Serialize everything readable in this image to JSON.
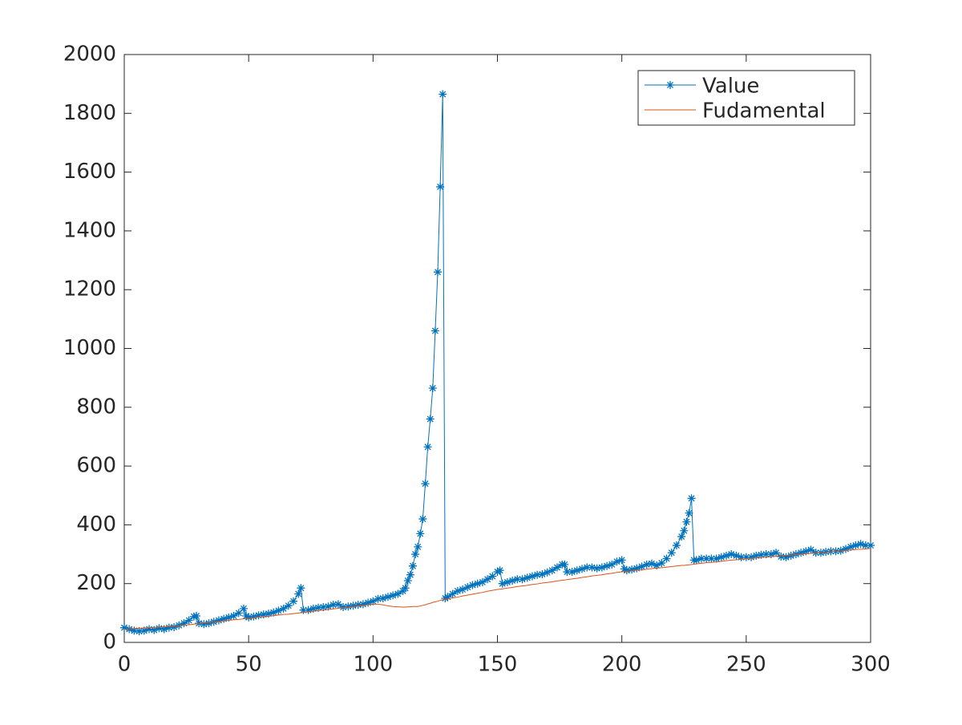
{
  "chart_data": {
    "type": "line",
    "x": [
      0,
      2,
      4,
      6,
      8,
      10,
      12,
      14,
      16,
      18,
      20,
      22,
      24,
      26,
      28,
      29,
      30,
      32,
      34,
      36,
      38,
      40,
      42,
      44,
      46,
      48,
      49,
      50,
      52,
      54,
      56,
      58,
      60,
      62,
      64,
      66,
      68,
      70,
      71,
      72,
      74,
      76,
      78,
      80,
      82,
      84,
      86,
      88,
      90,
      92,
      94,
      96,
      98,
      100,
      102,
      104,
      106,
      108,
      110,
      112,
      113,
      114,
      115,
      116,
      117,
      118,
      119,
      120,
      121,
      122,
      123,
      124,
      125,
      126,
      127,
      128,
      129,
      130,
      132,
      134,
      136,
      138,
      140,
      142,
      144,
      146,
      148,
      150,
      151,
      152,
      154,
      156,
      158,
      160,
      162,
      164,
      166,
      168,
      170,
      172,
      174,
      176,
      177,
      178,
      180,
      182,
      184,
      186,
      188,
      190,
      192,
      194,
      196,
      198,
      200,
      201,
      202,
      204,
      206,
      208,
      210,
      212,
      214,
      216,
      218,
      220,
      222,
      224,
      225,
      226,
      227,
      228,
      229,
      230,
      232,
      234,
      236,
      238,
      240,
      242,
      244,
      246,
      248,
      250,
      252,
      254,
      256,
      258,
      260,
      262,
      264,
      266,
      268,
      270,
      272,
      274,
      276,
      278,
      280,
      282,
      284,
      286,
      288,
      290,
      292,
      294,
      296,
      298,
      300
    ],
    "series": [
      {
        "name": "Value",
        "color": "#0072BD",
        "marker": "asterisk",
        "values": [
          50,
          45,
          40,
          38,
          40,
          45,
          42,
          48,
          45,
          50,
          52,
          58,
          65,
          75,
          88,
          90,
          65,
          62,
          65,
          70,
          75,
          80,
          85,
          90,
          100,
          115,
          90,
          85,
          88,
          92,
          95,
          98,
          102,
          108,
          115,
          125,
          140,
          165,
          185,
          110,
          110,
          115,
          118,
          120,
          122,
          128,
          130,
          120,
          122,
          125,
          128,
          130,
          135,
          140,
          148,
          150,
          155,
          160,
          165,
          175,
          185,
          210,
          230,
          260,
          300,
          325,
          370,
          420,
          540,
          665,
          760,
          865,
          1060,
          1260,
          1550,
          1865,
          150,
          155,
          165,
          175,
          180,
          188,
          195,
          200,
          205,
          215,
          225,
          240,
          245,
          200,
          205,
          210,
          215,
          215,
          220,
          225,
          230,
          232,
          238,
          245,
          255,
          265,
          265,
          240,
          240,
          245,
          250,
          255,
          255,
          252,
          255,
          260,
          265,
          275,
          280,
          250,
          245,
          248,
          252,
          258,
          265,
          268,
          262,
          270,
          285,
          305,
          330,
          360,
          380,
          410,
          440,
          490,
          280,
          280,
          285,
          285,
          285,
          285,
          290,
          295,
          300,
          295,
          290,
          290,
          290,
          295,
          298,
          300,
          300,
          305,
          292,
          290,
          295,
          300,
          305,
          310,
          315,
          305,
          305,
          308,
          310,
          310,
          312,
          318,
          325,
          330,
          335,
          330,
          330
        ]
      },
      {
        "name": "Fudamental",
        "color": "#D95319",
        "values": [
          45,
          46,
          47,
          48,
          49,
          50,
          51,
          52,
          53,
          54,
          55,
          57,
          59,
          60,
          62,
          63,
          64,
          66,
          68,
          69,
          71,
          73,
          75,
          77,
          78,
          80,
          81,
          82,
          84,
          86,
          87,
          89,
          91,
          93,
          95,
          96,
          98,
          100,
          101,
          102,
          104,
          106,
          108,
          110,
          112,
          114,
          116,
          118,
          120,
          122,
          124,
          126,
          128,
          130,
          130,
          128,
          124,
          122,
          121,
          120,
          120,
          121,
          121,
          122,
          122,
          122,
          124,
          126,
          128,
          131,
          133,
          136,
          138,
          140,
          143,
          145,
          147,
          148,
          151,
          154,
          158,
          161,
          164,
          167,
          170,
          174,
          177,
          180,
          181,
          182,
          185,
          187,
          190,
          192,
          194,
          197,
          199,
          202,
          204,
          206,
          209,
          211,
          212,
          214,
          216,
          218,
          221,
          223,
          226,
          228,
          230,
          233,
          235,
          238,
          240,
          241,
          242,
          244,
          246,
          247,
          249,
          251,
          253,
          254,
          256,
          258,
          260,
          262,
          262,
          263,
          264,
          265,
          266,
          267,
          269,
          271,
          272,
          274,
          276,
          278,
          280,
          281,
          283,
          285,
          286,
          287,
          289,
          290,
          292,
          293,
          295,
          296,
          297,
          299,
          300,
          302,
          303,
          304,
          306,
          307,
          309,
          310,
          311,
          313,
          314,
          316,
          317,
          318,
          320
        ]
      }
    ],
    "xlim": [
      0,
      300
    ],
    "xticks": [
      0,
      50,
      100,
      150,
      200,
      250,
      300
    ],
    "ylim": [
      0,
      2000
    ],
    "yticks": [
      0,
      200,
      400,
      600,
      800,
      1000,
      1200,
      1400,
      1600,
      1800,
      2000
    ],
    "legend": "upper right"
  }
}
